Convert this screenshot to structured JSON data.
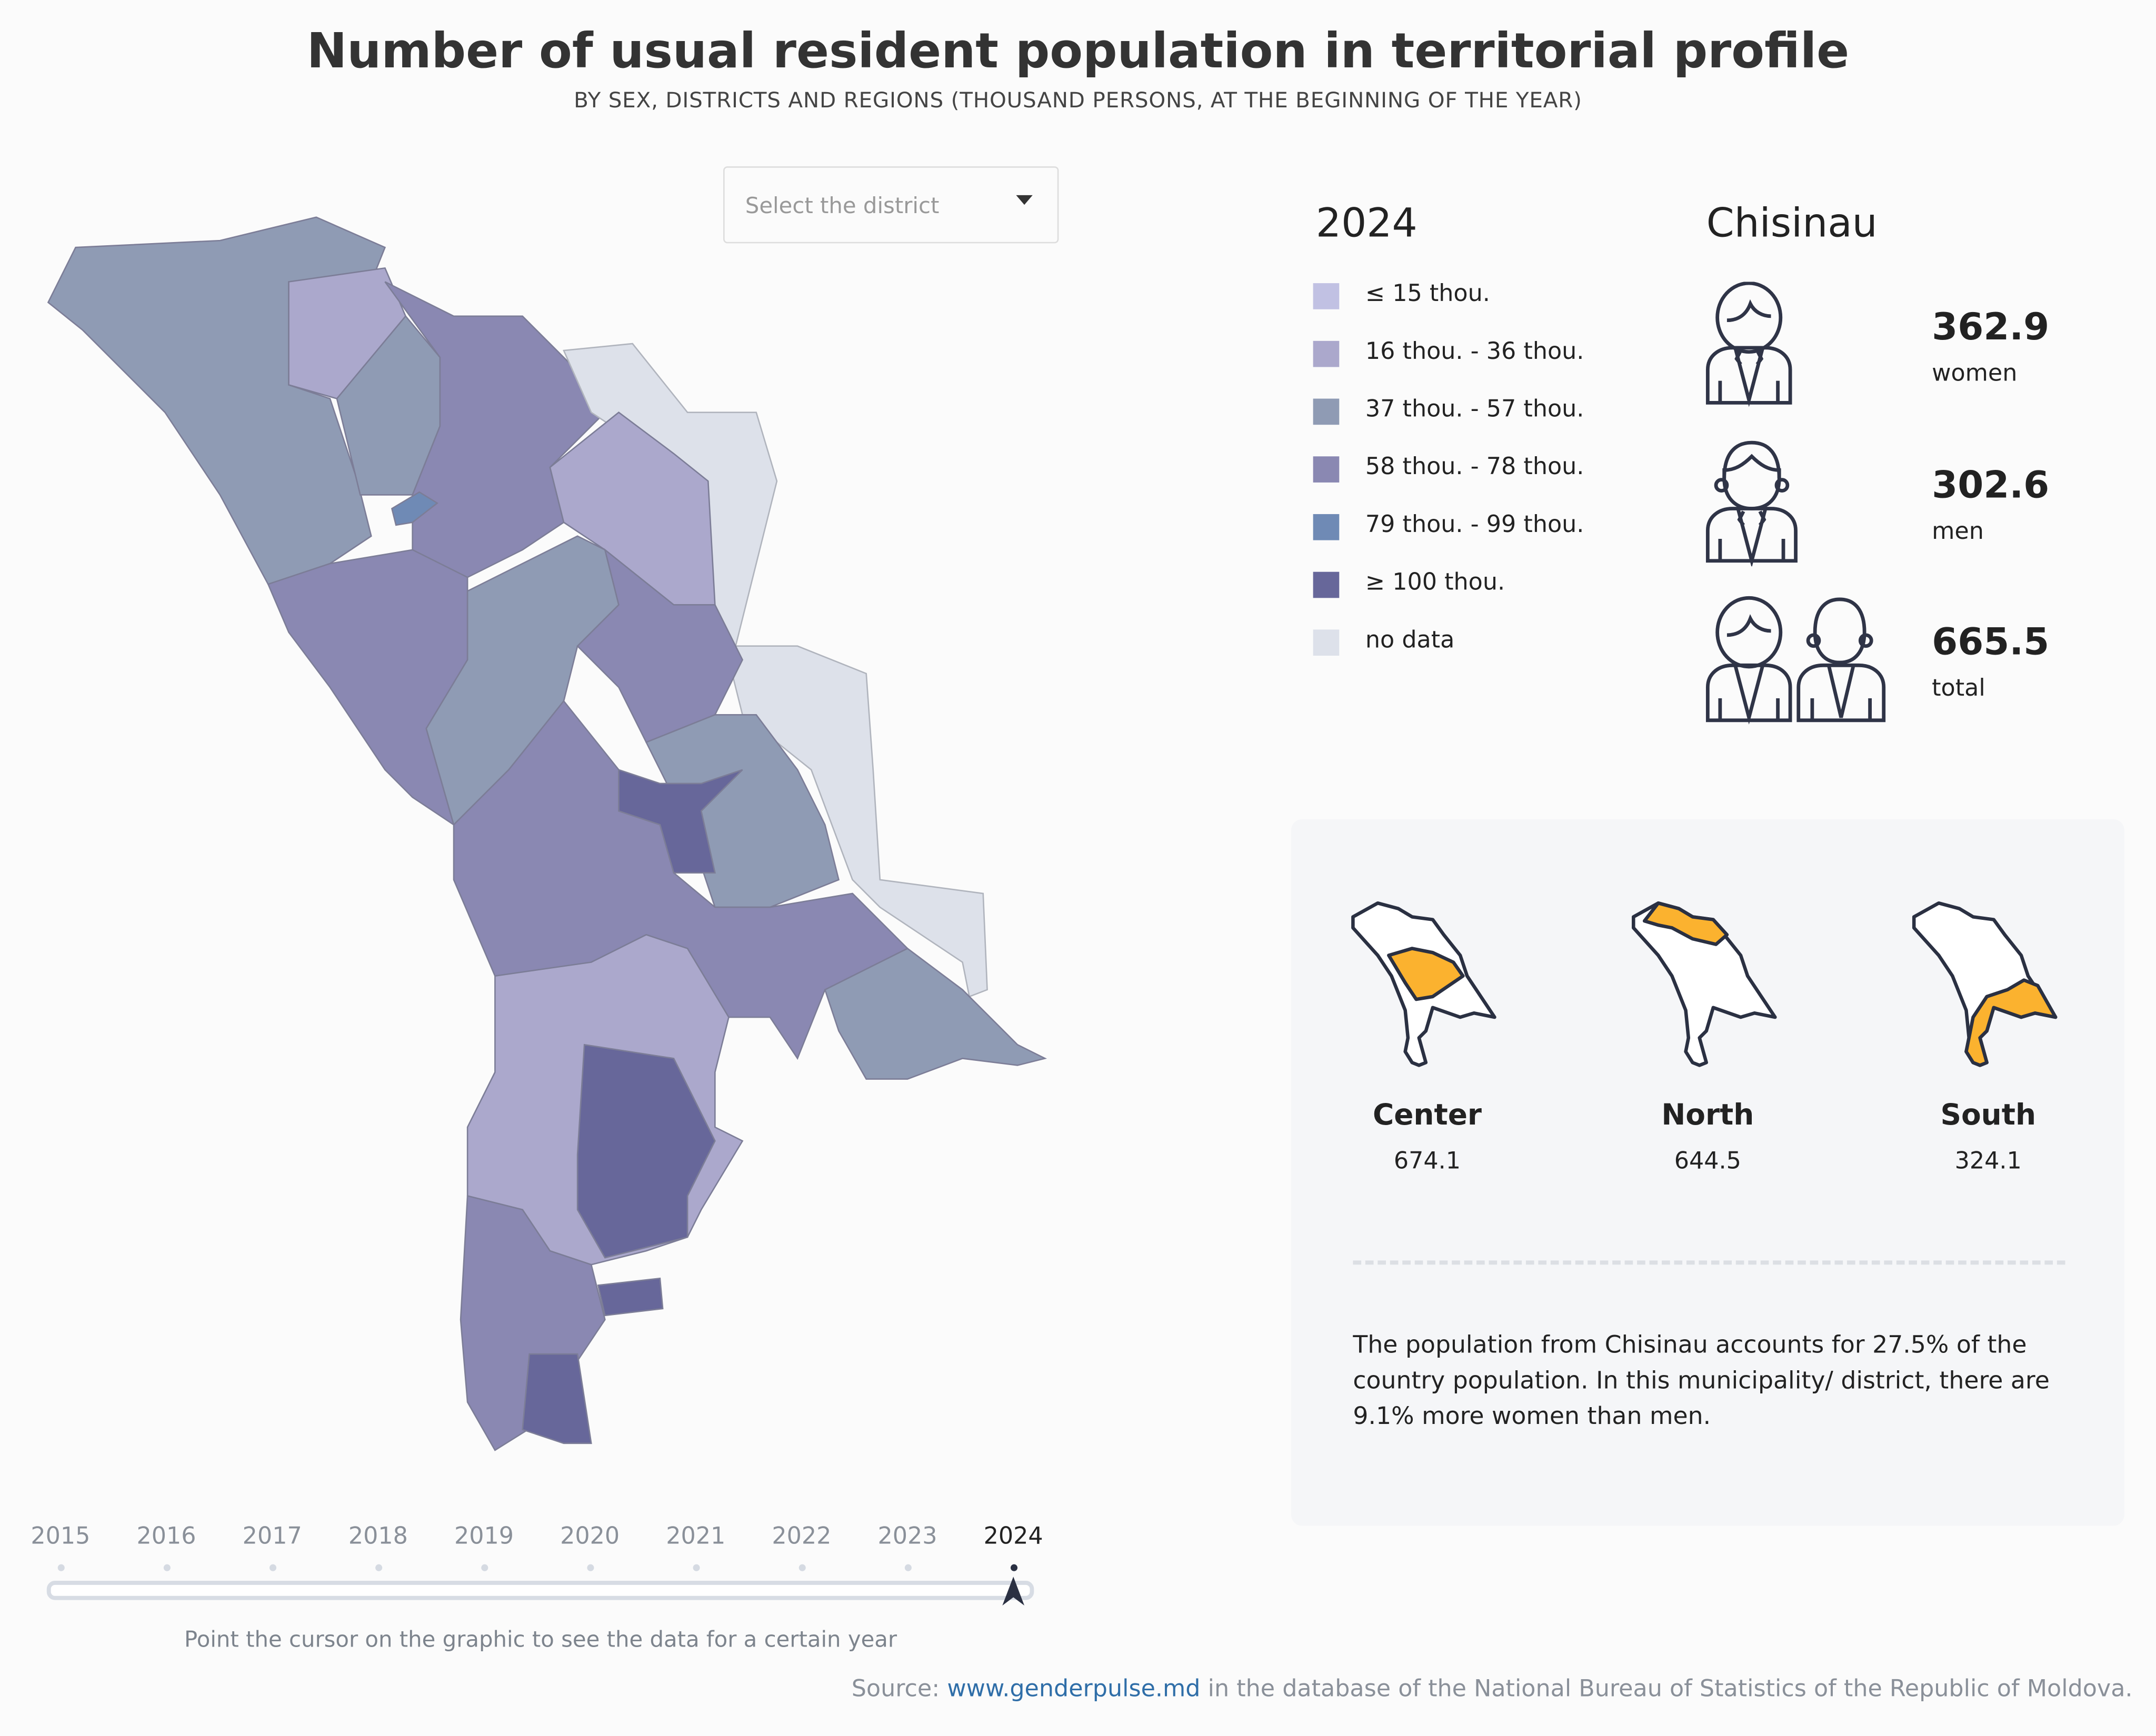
{
  "header": {
    "title": "Number of usual resident population in territorial profile",
    "subtitle": "BY SEX, DISTRICTS AND REGIONS (THOUSAND PERSONS, AT THE BEGINNING OF THE YEAR)"
  },
  "district_select": {
    "placeholder": "Select the district",
    "icon": "caret-down-icon"
  },
  "legend": {
    "year": "2024",
    "items": [
      {
        "label": "≤ 15 thou.",
        "color": "#c1c1e3"
      },
      {
        "label": "16 thou. - 36 thou.",
        "color": "#aba8cc"
      },
      {
        "label": "37 thou. - 57 thou.",
        "color": "#8f9bb4"
      },
      {
        "label": "58 thou. - 78 thou.",
        "color": "#8a88b2"
      },
      {
        "label": "79 thou. - 99 thou.",
        "color": "#6f8ab5"
      },
      {
        "label": "≥ 100 thou.",
        "color": "#67679a"
      },
      {
        "label": "no data",
        "color": "#dde1ea"
      }
    ]
  },
  "stats": {
    "district": "Chisinau",
    "women": {
      "value": "362.9",
      "label": "women",
      "icon": "woman-icon"
    },
    "men": {
      "value": "302.6",
      "label": "men",
      "icon": "man-icon"
    },
    "total": {
      "value": "665.5",
      "label": "total",
      "icon": "couple-icon"
    }
  },
  "regions": [
    {
      "name": "Center",
      "value": "674.1"
    },
    {
      "name": "North",
      "value": "644.5"
    },
    {
      "name": "South",
      "value": "324.1"
    }
  ],
  "highlight_color": "#fbb22f",
  "note": "The population from Chisinau accounts for 27.5% of the country population. In this municipality/ district, there are 9.1% more women than men.",
  "timeline": {
    "years": [
      "2015",
      "2016",
      "2017",
      "2018",
      "2019",
      "2020",
      "2021",
      "2022",
      "2023",
      "2024"
    ],
    "selected": "2024",
    "hint": "Point the cursor on the graphic to see the data for a certain year"
  },
  "source": {
    "prefix": "Source: ",
    "link": "www.genderpulse.md",
    "suffix": " in the database of the National Bureau of Statistics of the Republic of Moldova."
  }
}
